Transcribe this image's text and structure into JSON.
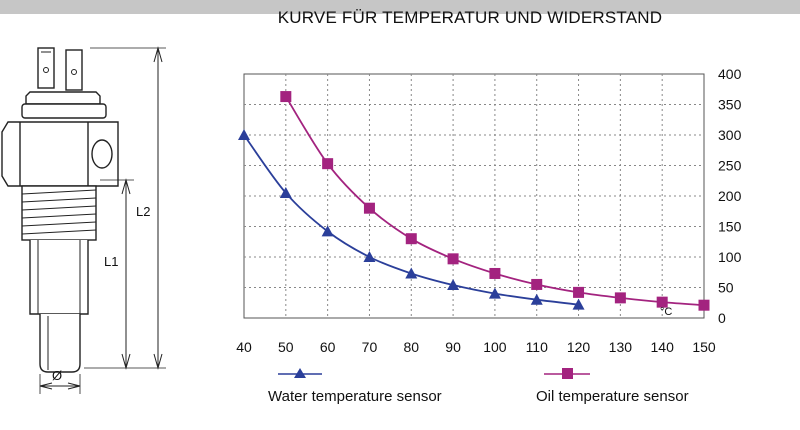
{
  "title": "KURVE FÜR TEMPERATUR UND WIDERSTAND",
  "drawing": {
    "label_l1": "L1",
    "label_l2": "L2",
    "label_diameter": "Ø"
  },
  "chart_data": {
    "type": "line",
    "x": [
      40,
      50,
      60,
      70,
      80,
      90,
      100,
      110,
      120,
      130,
      140,
      150
    ],
    "xlim": [
      40,
      150
    ],
    "ylim": [
      0,
      400
    ],
    "y_ticks": [
      0,
      50,
      100,
      150,
      200,
      250,
      300,
      350,
      400
    ],
    "y_axis_side": "right",
    "grid": "horizontal dotted",
    "unit_label": "°C",
    "series": [
      {
        "name": "Water temperature sensor",
        "color": "#2b3f9a",
        "marker": "triangle",
        "x": [
          40,
          50,
          60,
          70,
          80,
          90,
          100,
          110,
          120
        ],
        "y": [
          300,
          205,
          142,
          100,
          73,
          54,
          40,
          30,
          22
        ]
      },
      {
        "name": "Oil temperature sensor",
        "color": "#a3237f",
        "marker": "square",
        "x": [
          50,
          60,
          70,
          80,
          90,
          100,
          110,
          120,
          130,
          140,
          150
        ],
        "y": [
          363,
          253,
          180,
          130,
          97,
          73,
          55,
          42,
          33,
          26,
          21
        ]
      }
    ],
    "legend_placement": "bottom"
  }
}
